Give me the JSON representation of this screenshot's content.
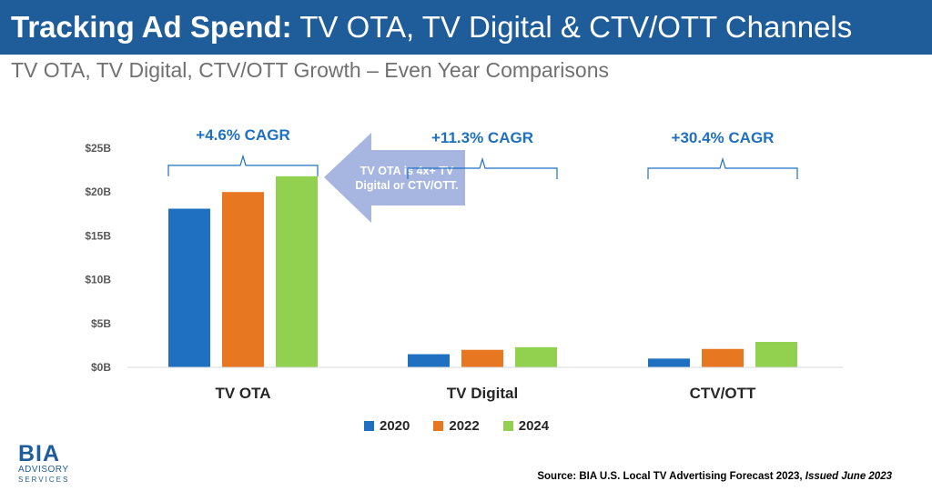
{
  "header": {
    "title_bold": "Tracking Ad Spend:",
    "title_rest": " TV OTA, TV Digital & CTV/OTT Channels",
    "subtitle": "TV OTA, TV Digital, CTV/OTT Growth – Even Year Comparisons"
  },
  "colors": {
    "title_bar": "#1f5c9a",
    "2020": "#1f70c1",
    "2022": "#e87722",
    "2024": "#92d050",
    "cagr_text": "#1f70c1",
    "callout_arrow": "#a6b6e0"
  },
  "chart_data": {
    "type": "bar",
    "categories": [
      "TV OTA",
      "TV Digital",
      "CTV/OTT"
    ],
    "series": [
      {
        "name": "2020",
        "values": [
          18.1,
          1.5,
          1.0
        ]
      },
      {
        "name": "2022",
        "values": [
          20.0,
          2.0,
          2.1
        ]
      },
      {
        "name": "2024",
        "values": [
          21.8,
          2.3,
          2.9
        ]
      }
    ],
    "unit": "$B",
    "ylim": [
      0,
      25
    ],
    "yticks": [
      "$0B",
      "$5B",
      "$10B",
      "$15B",
      "$20B",
      "$25B"
    ],
    "ytick_values": [
      0,
      5,
      10,
      15,
      20,
      25
    ],
    "grid": false,
    "legend_position": "bottom",
    "annotations": {
      "cagr": [
        "+4.6% CAGR",
        "+11.3% CAGR",
        "+30.4% CAGR"
      ],
      "callout": [
        "TV OTA is 4x+ TV",
        "Digital or CTV/OTT."
      ]
    }
  },
  "legend": [
    "2020",
    "2022",
    "2024"
  ],
  "logo": {
    "main": "BIA",
    "line1": "ADVISORY",
    "line2": "SERVICES"
  },
  "source": {
    "text": "Source: BIA U.S. Local TV Advertising Forecast 2023, ",
    "issued": "Issued June 2023"
  }
}
